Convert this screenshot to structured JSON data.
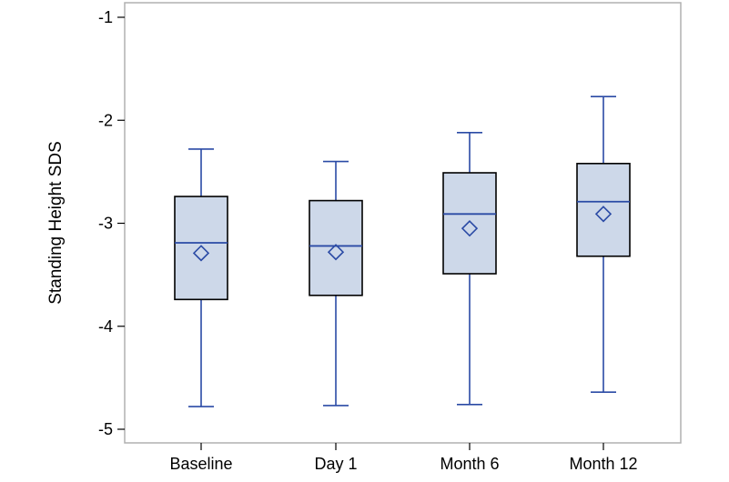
{
  "chart_data": {
    "type": "box",
    "title": "",
    "xlabel": "",
    "ylabel": "Standing Height SDS",
    "ylim": [
      -5.15,
      -0.9
    ],
    "yticks": [
      -1,
      -2,
      -3,
      -4,
      -5
    ],
    "ytick_labels": [
      "-1",
      "-2",
      "-3",
      "-4",
      "-5"
    ],
    "grid": false,
    "categories": [
      "Baseline",
      "Day 1",
      "Month 6",
      "Month 12"
    ],
    "boxes": [
      {
        "category": "Baseline",
        "min": -4.78,
        "q1": -3.74,
        "median": -3.19,
        "q3": -2.74,
        "max": -2.28,
        "mean": -3.29
      },
      {
        "category": "Day 1",
        "min": -4.77,
        "q1": -3.7,
        "median": -3.22,
        "q3": -2.78,
        "max": -2.4,
        "mean": -3.28
      },
      {
        "category": "Month 6",
        "min": -4.76,
        "q1": -3.49,
        "median": -2.91,
        "q3": -2.51,
        "max": -2.12,
        "mean": -3.05
      },
      {
        "category": "Month 12",
        "min": -4.64,
        "q1": -3.32,
        "median": -2.79,
        "q3": -2.42,
        "max": -1.77,
        "mean": -2.91
      }
    ],
    "colors": {
      "box_fill": "#cdd8e9",
      "box_edge": "#000000",
      "whisker": "#2a4aa5",
      "median": "#2a4aa5",
      "mean_marker": "#2a4aa5",
      "frame": "#b0b0b0"
    },
    "mean_marker": "diamond"
  }
}
